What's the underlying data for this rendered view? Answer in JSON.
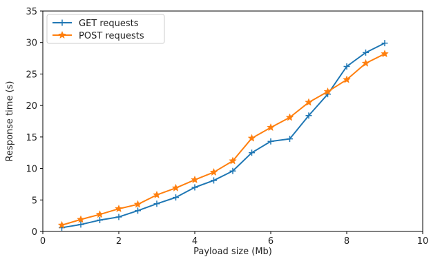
{
  "chart_data": {
    "type": "line",
    "title": "",
    "xlabel": "Payload size (Mb)",
    "ylabel": "Response time (s)",
    "xlim": [
      0,
      10
    ],
    "ylim": [
      0,
      35
    ],
    "xticks": [
      0,
      2,
      4,
      6,
      8,
      10
    ],
    "yticks": [
      0,
      5,
      10,
      15,
      20,
      25,
      30,
      35
    ],
    "grid": false,
    "legend_position": "top-left",
    "x": [
      0.5,
      1.0,
      1.5,
      2.0,
      2.5,
      3.0,
      3.5,
      4.0,
      4.5,
      5.0,
      5.5,
      6.0,
      6.5,
      7.0,
      7.5,
      8.0,
      8.5,
      9.0
    ],
    "series": [
      {
        "name": "GET requests",
        "color": "#1f77b4",
        "marker": "plus",
        "values": [
          0.6,
          1.1,
          1.8,
          2.3,
          3.3,
          4.4,
          5.4,
          7.0,
          8.1,
          9.6,
          12.5,
          14.3,
          14.7,
          18.4,
          21.8,
          26.2,
          28.4,
          29.9
        ]
      },
      {
        "name": "POST requests",
        "color": "#ff7f0e",
        "marker": "star",
        "values": [
          1.0,
          1.9,
          2.7,
          3.6,
          4.3,
          5.8,
          6.9,
          8.2,
          9.4,
          11.2,
          14.8,
          16.5,
          18.1,
          20.5,
          22.2,
          24.1,
          26.7,
          28.2
        ]
      }
    ]
  }
}
